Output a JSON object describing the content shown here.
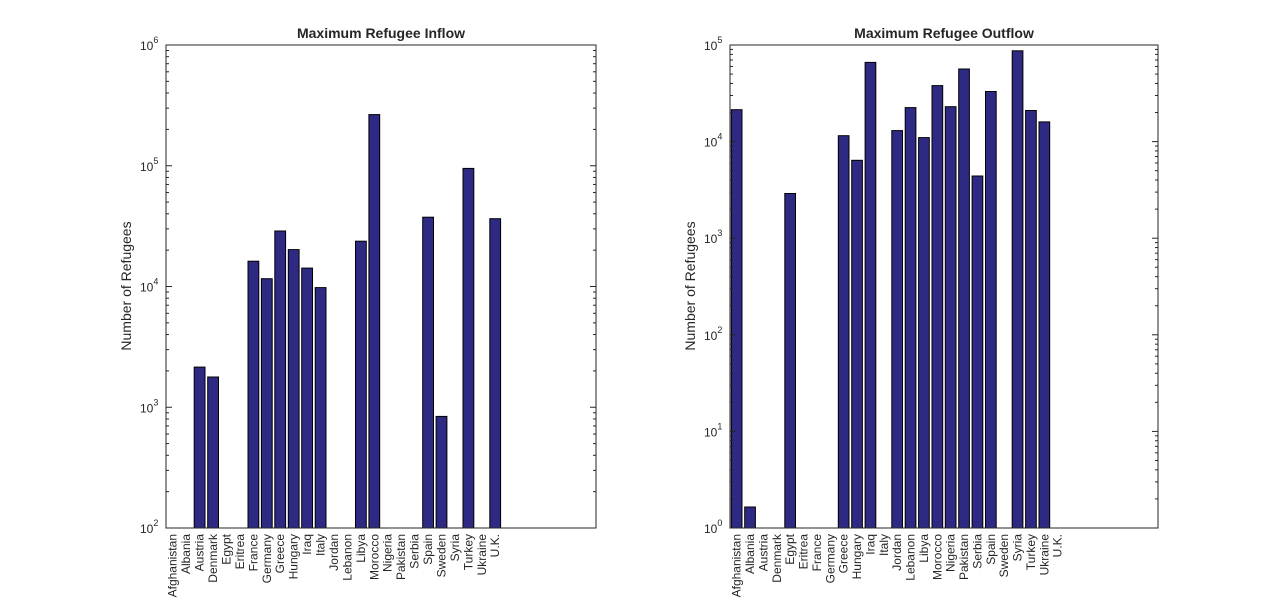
{
  "chart_data": [
    {
      "type": "bar",
      "title": "Maximum Refugee Inflow",
      "xlabel": "",
      "ylabel": "Number of Refugees",
      "yscale": "log",
      "ylim": [
        100,
        1000000
      ],
      "ytick_values": [
        100,
        1000,
        10000,
        100000,
        1000000
      ],
      "ytick_exponents": [
        "2",
        "3",
        "4",
        "5",
        "6"
      ],
      "bar_color": "#2e2a84",
      "categories": [
        "Afghanistan",
        "Albania",
        "Austria",
        "Denmark",
        "Egypt",
        "Eritrea",
        "France",
        "Germany",
        "Greece",
        "Hungary",
        "Iraq",
        "Italy",
        "Jordan",
        "Lebanon",
        "Libya",
        "Morocco",
        "Nigeria",
        "Pakistan",
        "Serbia",
        "Spain",
        "Sweden",
        "Syria",
        "Turkey",
        "Ukraine",
        "U.K."
      ],
      "values": [
        0,
        0,
        2150,
        1780,
        0,
        0,
        16200,
        11600,
        28800,
        20200,
        14200,
        9800,
        0,
        0,
        23700,
        265000,
        0,
        0,
        0,
        37500,
        840,
        0,
        95000,
        0,
        36400
      ],
      "grid": false
    },
    {
      "type": "bar",
      "title": "Maximum Refugee Outflow",
      "xlabel": "",
      "ylabel": "Number of Refugees",
      "yscale": "log",
      "ylim": [
        1,
        100000
      ],
      "ytick_values": [
        1,
        10,
        100,
        1000,
        10000,
        100000
      ],
      "ytick_exponents": [
        "0",
        "1",
        "2",
        "3",
        "4",
        "5"
      ],
      "bar_color": "#2e2a84",
      "categories": [
        "Afghanistan",
        "Albania",
        "Austria",
        "Denmark",
        "Egypt",
        "Eritrea",
        "France",
        "Germany",
        "Greece",
        "Hungary",
        "Iraq",
        "Italy",
        "Jordan",
        "Lebanon",
        "Libya",
        "Morocco",
        "Nigeria",
        "Pakistan",
        "Serbia",
        "Spain",
        "Sweden",
        "Syria",
        "Turkey",
        "Ukraine",
        "U.K."
      ],
      "values": [
        21400,
        1.65,
        0,
        0,
        2900,
        0,
        0,
        0,
        11500,
        6400,
        66000,
        0,
        13000,
        22500,
        11000,
        38000,
        23000,
        56500,
        4400,
        33000,
        0,
        87000,
        21000,
        16000,
        0
      ],
      "grid": false
    }
  ]
}
